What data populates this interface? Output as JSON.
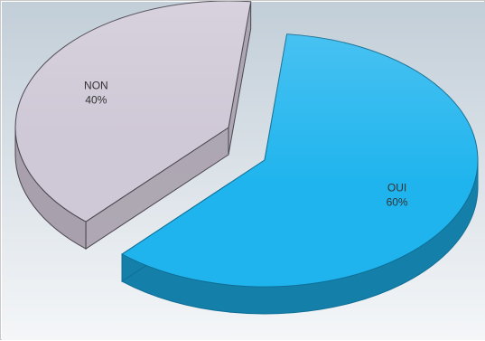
{
  "chart_data": {
    "type": "pie",
    "title": "",
    "legend": "none",
    "slices": [
      {
        "label": "OUI",
        "value": 60,
        "value_label": "60%",
        "color": "#1fb4ee",
        "side_color": "#1480aa",
        "edge_color": "#0f6f96"
      },
      {
        "label": "NON",
        "value": 40,
        "value_label": "40%",
        "color": "#cfc8d6",
        "side_color": "#a8a1ad",
        "edge_color": "#4a4650"
      }
    ]
  },
  "theme": {
    "background_top": "#c2ced8",
    "background_bottom": "#f4f6f8"
  }
}
